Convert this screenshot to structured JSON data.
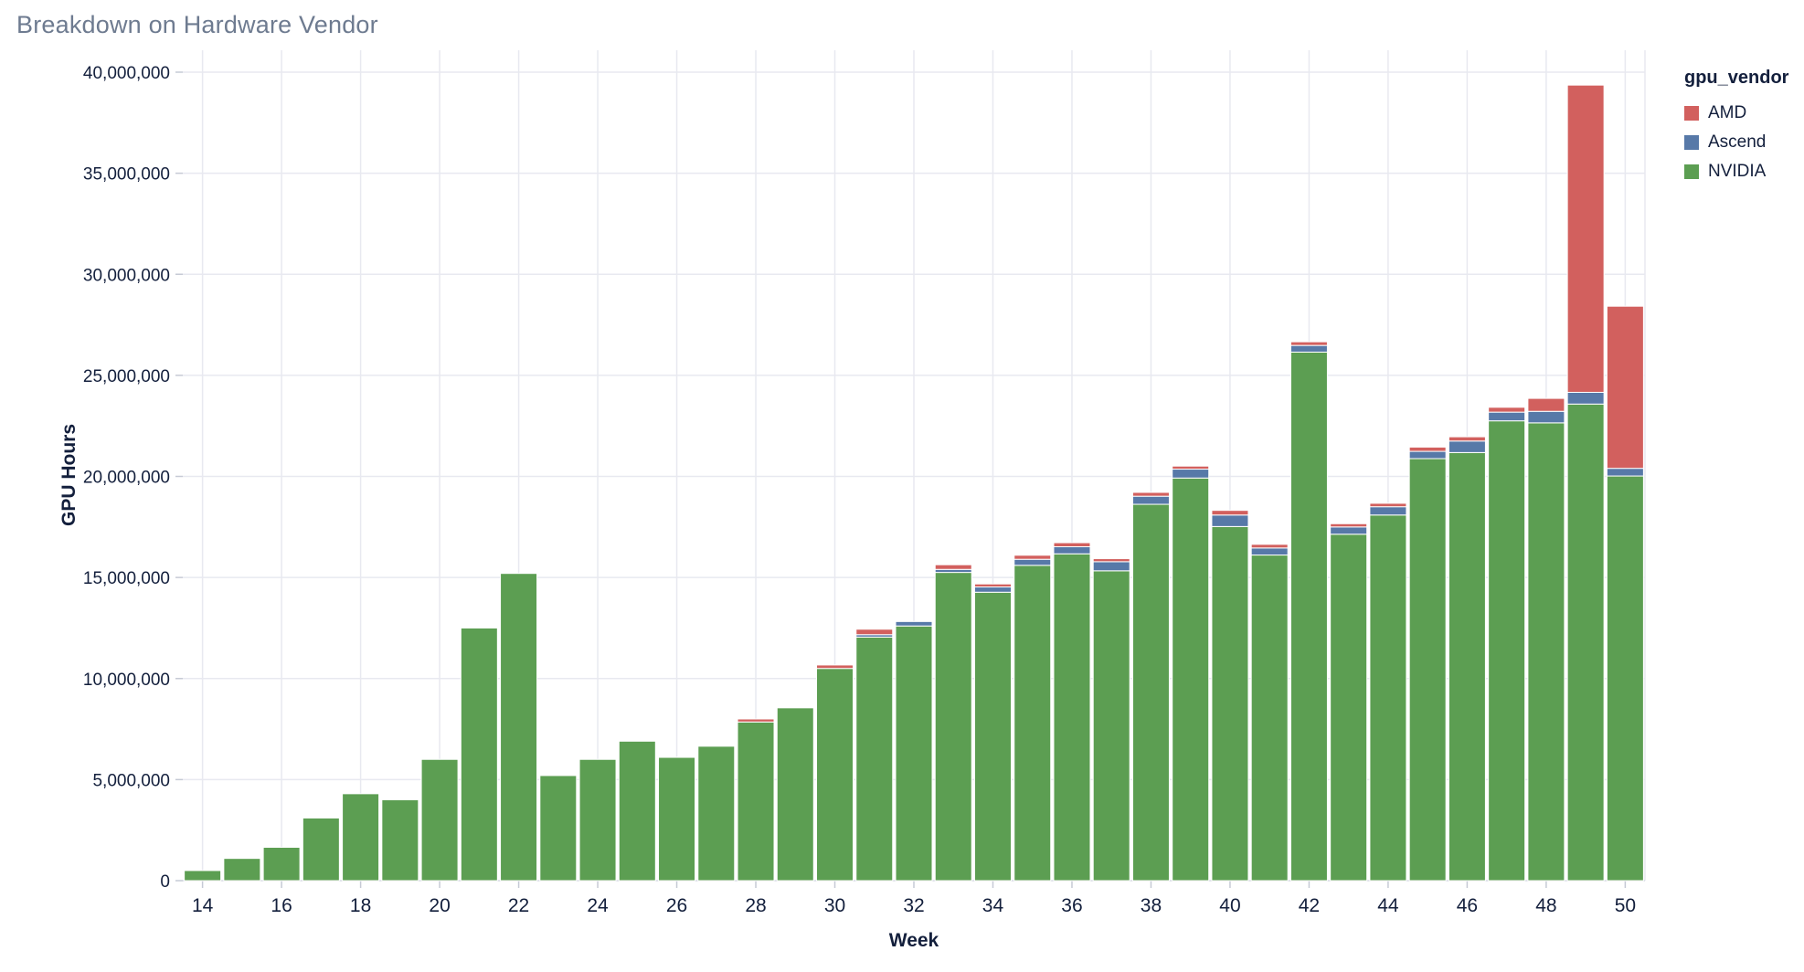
{
  "page": {
    "title": "Breakdown on Hardware Vendor"
  },
  "colors": {
    "title_text": "#6e7b90",
    "axis_text": "#131f3c",
    "grid_line": "#e8e9f0",
    "axis_line": "#d9dce5",
    "tick_mark": "#c6cad5",
    "background": "#ffffff",
    "amd": "#d2605e",
    "ascend": "#5779a8",
    "nvidia": "#5c9e52"
  },
  "legend": {
    "title": "gpu_vendor",
    "items": [
      {
        "label": "AMD",
        "color": "#d2605e"
      },
      {
        "label": "Ascend",
        "color": "#5779a8"
      },
      {
        "label": "NVIDIA",
        "color": "#5c9e52"
      }
    ]
  },
  "axes": {
    "x_title": "Week",
    "y_title": "GPU Hours",
    "y_tick_labels": [
      "0",
      "5,000,000",
      "10,000,000",
      "15,000,000",
      "20,000,000",
      "25,000,000",
      "30,000,000",
      "35,000,000",
      "40,000,000"
    ],
    "x_tick_labels": [
      "14",
      "16",
      "18",
      "20",
      "22",
      "24",
      "26",
      "28",
      "30",
      "32",
      "34",
      "36",
      "38",
      "40",
      "42",
      "44",
      "46",
      "48",
      "50"
    ]
  },
  "chart_data": {
    "type": "bar",
    "stacked": true,
    "title": "Breakdown on Hardware Vendor",
    "xlabel": "Week",
    "ylabel": "GPU Hours",
    "ylim": [
      0,
      40000000
    ],
    "y_tick_step": 5000000,
    "grid": true,
    "legend_title": "gpu_vendor",
    "legend_position": "top-right",
    "categories": [
      14,
      15,
      16,
      17,
      18,
      19,
      20,
      21,
      22,
      23,
      24,
      25,
      26,
      27,
      28,
      29,
      30,
      31,
      32,
      33,
      34,
      35,
      36,
      37,
      38,
      39,
      40,
      41,
      42,
      43,
      44,
      45,
      46,
      47,
      48,
      49,
      50
    ],
    "series": [
      {
        "name": "NVIDIA",
        "color": "#5c9e52",
        "values": [
          500000,
          1100000,
          1650000,
          3100000,
          4300000,
          4000000,
          6000000,
          12500000,
          15200000,
          5200000,
          6000000,
          6900000,
          6100000,
          6650000,
          7850000,
          8550000,
          10500000,
          12050000,
          12600000,
          15250000,
          14270000,
          15600000,
          16170000,
          15330000,
          18620000,
          19920000,
          17520000,
          16110000,
          26150000,
          17140000,
          18090000,
          20880000,
          21180000,
          22750000,
          22650000,
          23580000,
          20020000
        ]
      },
      {
        "name": "Ascend",
        "color": "#5779a8",
        "values": [
          0,
          0,
          0,
          0,
          0,
          0,
          0,
          0,
          0,
          0,
          0,
          0,
          0,
          0,
          0,
          0,
          0,
          120000,
          220000,
          150000,
          260000,
          300000,
          350000,
          450000,
          400000,
          440000,
          570000,
          350000,
          330000,
          360000,
          410000,
          360000,
          570000,
          430000,
          570000,
          580000,
          380000
        ]
      },
      {
        "name": "AMD",
        "color": "#d2605e",
        "values": [
          0,
          0,
          0,
          0,
          0,
          0,
          0,
          0,
          0,
          0,
          0,
          0,
          0,
          0,
          150000,
          0,
          170000,
          270000,
          0,
          230000,
          150000,
          200000,
          200000,
          150000,
          190000,
          150000,
          230000,
          180000,
          180000,
          160000,
          170000,
          210000,
          210000,
          240000,
          640000,
          15200000,
          8020000
        ]
      }
    ]
  }
}
